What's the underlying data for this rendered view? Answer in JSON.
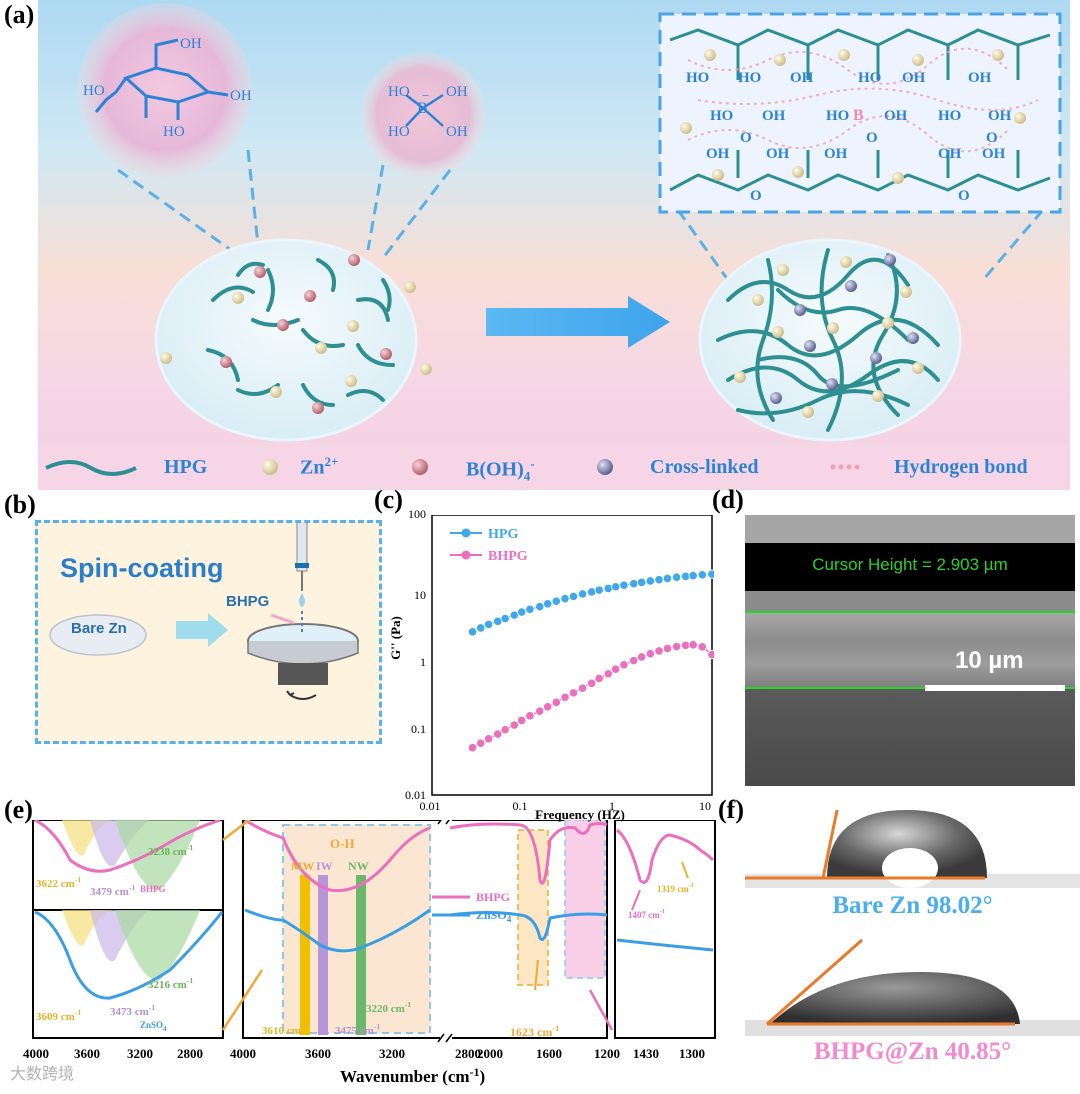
{
  "panel_labels": {
    "a": "(a)",
    "b": "(b)",
    "c": "(c)",
    "d": "(d)",
    "e": "(e)",
    "f": "(f)"
  },
  "a": {
    "chem_glucose": {
      "oh1": "OH",
      "ho1": "HO",
      "oh2": "OH",
      "ho2": "HO"
    },
    "chem_borate": {
      "ho1": "HO",
      "oh1": "OH",
      "ho2": "HO",
      "oh2": "OH",
      "b": "B",
      "charge": "−"
    },
    "network": {
      "ho": "HO",
      "oh": "OH",
      "o": "O",
      "b": "B"
    },
    "legend": [
      {
        "label": "HPG",
        "icon": "hpg-strand-icon"
      },
      {
        "label": "Zn",
        "sup": "2+",
        "icon": "zn-ball-icon"
      },
      {
        "label": "B(OH)",
        "sub": "4",
        "sup": "-",
        "icon": "borate-ball-icon"
      },
      {
        "label": "Cross-linked",
        "icon": "crosslink-ball-icon"
      },
      {
        "label": "Hydrogen bond",
        "icon": "hbond-dots-icon"
      }
    ]
  },
  "b": {
    "title": "Spin-coating",
    "bare_zn": "Bare Zn",
    "bhpg": "BHPG"
  },
  "c": {
    "chart_data": {
      "type": "scatter",
      "xscale": "log",
      "yscale": "log",
      "xlim": [
        0.01,
        10
      ],
      "ylim": [
        0.01,
        100
      ],
      "xlabel": "Frequency (HZ)",
      "ylabel": "G'' (Pa)",
      "xticks": [
        "0.01",
        "0.1",
        "1",
        "10"
      ],
      "yticks": [
        "0.01",
        "0.1",
        "1",
        "10",
        "100"
      ],
      "legend": "top-left",
      "series": [
        {
          "name": "HPG",
          "color": "#3fa7ea",
          "points": [
            [
              0.027,
              2.2
            ],
            [
              0.033,
              2.5
            ],
            [
              0.04,
              2.8
            ],
            [
              0.05,
              3.1
            ],
            [
              0.06,
              3.4
            ],
            [
              0.075,
              3.8
            ],
            [
              0.09,
              4.2
            ],
            [
              0.11,
              4.6
            ],
            [
              0.14,
              5.0
            ],
            [
              0.17,
              5.5
            ],
            [
              0.21,
              6.0
            ],
            [
              0.26,
              6.5
            ],
            [
              0.32,
              7.0
            ],
            [
              0.4,
              7.6
            ],
            [
              0.5,
              8.1
            ],
            [
              0.6,
              8.6
            ],
            [
              0.75,
              9.1
            ],
            [
              0.9,
              9.6
            ],
            [
              1.1,
              10.1
            ],
            [
              1.4,
              10.6
            ],
            [
              1.7,
              11.1
            ],
            [
              2.1,
              11.6
            ],
            [
              2.6,
              12.1
            ],
            [
              3.2,
              12.6
            ],
            [
              4.0,
              13.1
            ],
            [
              5.0,
              13.5
            ],
            [
              6.0,
              13.8
            ],
            [
              7.5,
              14.2
            ],
            [
              9.5,
              14.5
            ]
          ]
        },
        {
          "name": "BHPG",
          "color": "#ec6fbe",
          "points": [
            [
              0.027,
              0.05
            ],
            [
              0.033,
              0.058
            ],
            [
              0.04,
              0.067
            ],
            [
              0.05,
              0.078
            ],
            [
              0.06,
              0.09
            ],
            [
              0.075,
              0.105
            ],
            [
              0.09,
              0.122
            ],
            [
              0.11,
              0.142
            ],
            [
              0.14,
              0.165
            ],
            [
              0.17,
              0.19
            ],
            [
              0.21,
              0.22
            ],
            [
              0.26,
              0.26
            ],
            [
              0.32,
              0.3
            ],
            [
              0.4,
              0.35
            ],
            [
              0.5,
              0.41
            ],
            [
              0.6,
              0.48
            ],
            [
              0.75,
              0.56
            ],
            [
              0.9,
              0.65
            ],
            [
              1.1,
              0.75
            ],
            [
              1.4,
              0.86
            ],
            [
              1.7,
              0.97
            ],
            [
              2.1,
              1.08
            ],
            [
              2.6,
              1.18
            ],
            [
              3.2,
              1.28
            ],
            [
              4.0,
              1.36
            ],
            [
              5.0,
              1.42
            ],
            [
              6.0,
              1.44
            ],
            [
              7.5,
              1.35
            ],
            [
              9.5,
              1.05
            ]
          ]
        }
      ]
    }
  },
  "d": {
    "cursor": "Cursor Height = 2.903 µm",
    "scale": "10 µm"
  },
  "e": {
    "chart_data": {
      "type": "line",
      "xlabel": "Wavenumber (cm",
      "xlabel_sup": "-1",
      "xlabel_end": ")",
      "main_ticks": [
        "4000",
        "3600",
        "3200",
        "2800",
        "2000",
        "1600",
        "1200"
      ],
      "left_ticks": [
        "4000",
        "3600",
        "3200",
        "2800"
      ],
      "right_ticks": [
        "1430",
        "1300"
      ],
      "series": [
        {
          "name": "BHPG",
          "color": "#ec6fbe"
        },
        {
          "name": "ZnSO",
          "sub": "4",
          "color": "#3a9ee6"
        }
      ]
    },
    "labels": {
      "oh": "O-H",
      "mw": "MW",
      "iw": "IW",
      "nw": "NW",
      "bhpg": "BHPG",
      "znso": "ZnSO",
      "znso_sub": "4",
      "w3610": "3610 cm",
      "w3475": "3475 cm",
      "w3220": "3220 cm",
      "w1623": "1623 cm",
      "w1407": "1407 cm",
      "w1319": "1319 cm",
      "l3622": "3622 cm",
      "l3479": "3479 cm",
      "l3238": "3238 cm",
      "l3609": "3609 cm",
      "l3473": "3473 cm",
      "l3216": "3216 cm",
      "inset_bhpg": "BHPG",
      "inset_znso": "ZnSO",
      "inset_znso_sub": "4",
      "sup": "-1"
    }
  },
  "f": {
    "bare": "Bare Zn 98.02°",
    "bhpg": "BHPG@Zn 40.85°"
  },
  "watermark": "大数跨境"
}
